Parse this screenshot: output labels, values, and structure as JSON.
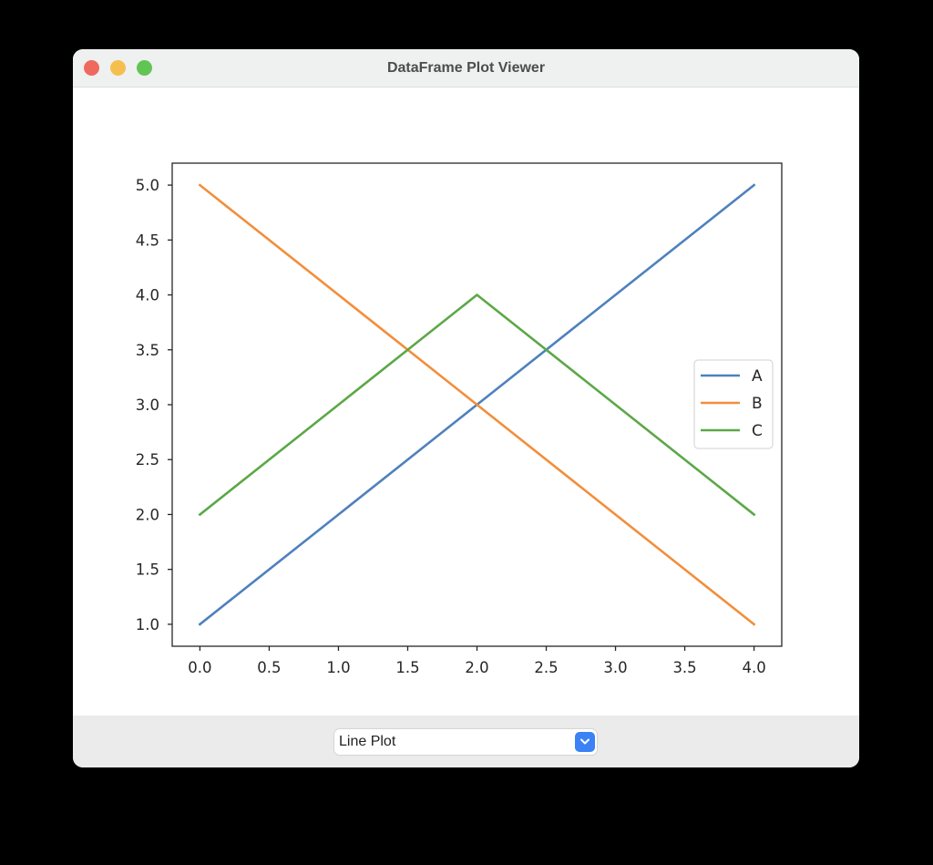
{
  "window": {
    "title": "DataFrame Plot Viewer",
    "traffic_lights": [
      {
        "name": "close",
        "color": "#ee6a5f"
      },
      {
        "name": "minimize",
        "color": "#f5bf4f"
      },
      {
        "name": "zoom",
        "color": "#61c554"
      }
    ]
  },
  "controls": {
    "plot_type_select": {
      "value": "Line Plot",
      "icon": "chevron-down-icon",
      "accent": "#3b82f6"
    }
  },
  "chart_data": {
    "type": "line",
    "title": "",
    "xlabel": "",
    "ylabel": "",
    "x": [
      0,
      1,
      2,
      3,
      4
    ],
    "series": [
      {
        "name": "A",
        "color": "#4e81bd",
        "values": [
          1,
          2,
          3,
          4,
          5
        ]
      },
      {
        "name": "B",
        "color": "#f28e3b",
        "values": [
          5,
          4,
          3,
          2,
          1
        ]
      },
      {
        "name": "C",
        "color": "#5ba848",
        "values": [
          2,
          3,
          4,
          3,
          2
        ]
      }
    ],
    "xlim": [
      -0.2,
      4.2
    ],
    "ylim": [
      0.8,
      5.2
    ],
    "x_ticks": [
      "0.0",
      "0.5",
      "1.0",
      "1.5",
      "2.0",
      "2.5",
      "3.0",
      "3.5",
      "4.0"
    ],
    "y_ticks": [
      "1.0",
      "1.5",
      "2.0",
      "2.5",
      "3.0",
      "3.5",
      "4.0",
      "4.5",
      "5.0"
    ],
    "grid": false,
    "legend": {
      "position": "center right",
      "entries": [
        "A",
        "B",
        "C"
      ]
    }
  }
}
